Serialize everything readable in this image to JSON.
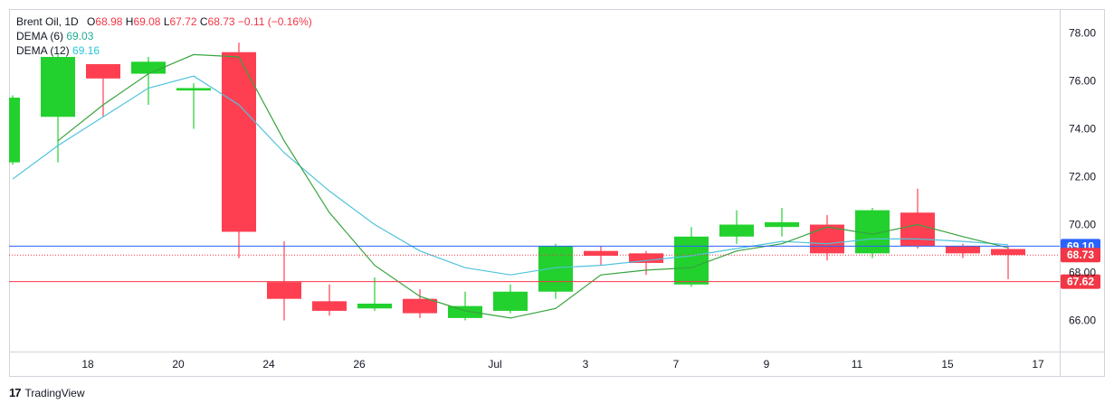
{
  "legend": {
    "symbol": "Brent Oil, 1D",
    "o_label": "O",
    "o": "68.98",
    "h_label": "H",
    "h": "69.08",
    "l_label": "L",
    "l": "67.72",
    "c_label": "C",
    "c": "68.73",
    "change": "−0.11 (−0.16%)",
    "dema6_label": "DEMA (6)",
    "dema6_value": "69.03",
    "dema12_label": "DEMA (12)",
    "dema12_value": "69.16"
  },
  "footer": {
    "brand": "TradingView"
  },
  "colors": {
    "up": "#22d12e",
    "down": "#fe3f52",
    "dema6": "#38a33e",
    "dema12": "#4fc3dc",
    "blue_line": "#2962ff",
    "red_line": "#f23645"
  },
  "chart_data": {
    "type": "candlestick",
    "title": "Brent Oil, 1D",
    "x_ticks": [
      "18",
      "20",
      "24",
      "26",
      "Jul",
      "3",
      "7",
      "9",
      "11",
      "15",
      "17"
    ],
    "y_ticks": [
      "66.00",
      "68.00",
      "70.00",
      "72.00",
      "74.00",
      "76.00",
      "78.00"
    ],
    "ylim": [
      64.7,
      79.0
    ],
    "candles": [
      {
        "o": 72.6,
        "h": 75.4,
        "l": 72.5,
        "c": 75.3
      },
      {
        "o": 74.5,
        "h": 77.1,
        "l": 72.6,
        "c": 77.0
      },
      {
        "o": 76.7,
        "h": 76.7,
        "l": 74.5,
        "c": 76.1
      },
      {
        "o": 76.3,
        "h": 77.0,
        "l": 75.0,
        "c": 76.8
      },
      {
        "o": 75.6,
        "h": 75.9,
        "l": 74.0,
        "c": 75.7
      },
      {
        "o": 77.2,
        "h": 77.6,
        "l": 68.6,
        "c": 69.7
      },
      {
        "o": 67.6,
        "h": 69.3,
        "l": 66.0,
        "c": 66.9
      },
      {
        "o": 66.8,
        "h": 67.5,
        "l": 66.2,
        "c": 66.4
      },
      {
        "o": 66.5,
        "h": 67.8,
        "l": 66.4,
        "c": 66.7
      },
      {
        "o": 66.9,
        "h": 67.3,
        "l": 66.1,
        "c": 66.3
      },
      {
        "o": 66.1,
        "h": 67.2,
        "l": 66.0,
        "c": 66.6
      },
      {
        "o": 66.4,
        "h": 67.5,
        "l": 66.3,
        "c": 67.2
      },
      {
        "o": 67.2,
        "h": 69.2,
        "l": 66.9,
        "c": 69.1
      },
      {
        "o": 68.9,
        "h": 69.1,
        "l": 68.3,
        "c": 68.7
      },
      {
        "o": 68.8,
        "h": 68.9,
        "l": 67.9,
        "c": 68.4
      },
      {
        "o": 67.5,
        "h": 69.9,
        "l": 67.4,
        "c": 69.5
      },
      {
        "o": 69.5,
        "h": 70.6,
        "l": 69.2,
        "c": 70.0
      },
      {
        "o": 69.9,
        "h": 70.7,
        "l": 69.5,
        "c": 70.1
      },
      {
        "o": 70.0,
        "h": 70.4,
        "l": 68.5,
        "c": 68.8
      },
      {
        "o": 68.8,
        "h": 70.7,
        "l": 68.6,
        "c": 70.6
      },
      {
        "o": 70.5,
        "h": 71.5,
        "l": 69.0,
        "c": 69.1
      },
      {
        "o": 69.1,
        "h": 69.2,
        "l": 68.6,
        "c": 68.8
      },
      {
        "o": 68.98,
        "h": 69.08,
        "l": 67.72,
        "c": 68.73
      }
    ],
    "dema6": [
      null,
      73.5,
      75.0,
      76.3,
      77.1,
      77.0,
      73.5,
      70.5,
      68.3,
      67.0,
      66.4,
      66.1,
      66.5,
      67.9,
      68.1,
      68.2,
      68.9,
      69.2,
      69.9,
      69.6,
      70.0,
      69.5,
      69.03
    ],
    "dema12": [
      71.9,
      73.3,
      74.5,
      75.7,
      76.2,
      75.0,
      73.0,
      71.4,
      70.0,
      68.9,
      68.2,
      67.9,
      68.2,
      68.3,
      68.5,
      68.7,
      69.0,
      69.3,
      69.2,
      69.4,
      69.4,
      69.3,
      69.16
    ],
    "price_lines": [
      {
        "value": 69.1,
        "label": "69.10",
        "style": "solid"
      },
      {
        "value": 68.73,
        "label": "68.73",
        "style": "dotted"
      },
      {
        "value": 67.62,
        "label": "67.62",
        "style": "solid"
      }
    ],
    "grid": false,
    "legend_position": "top-left"
  }
}
